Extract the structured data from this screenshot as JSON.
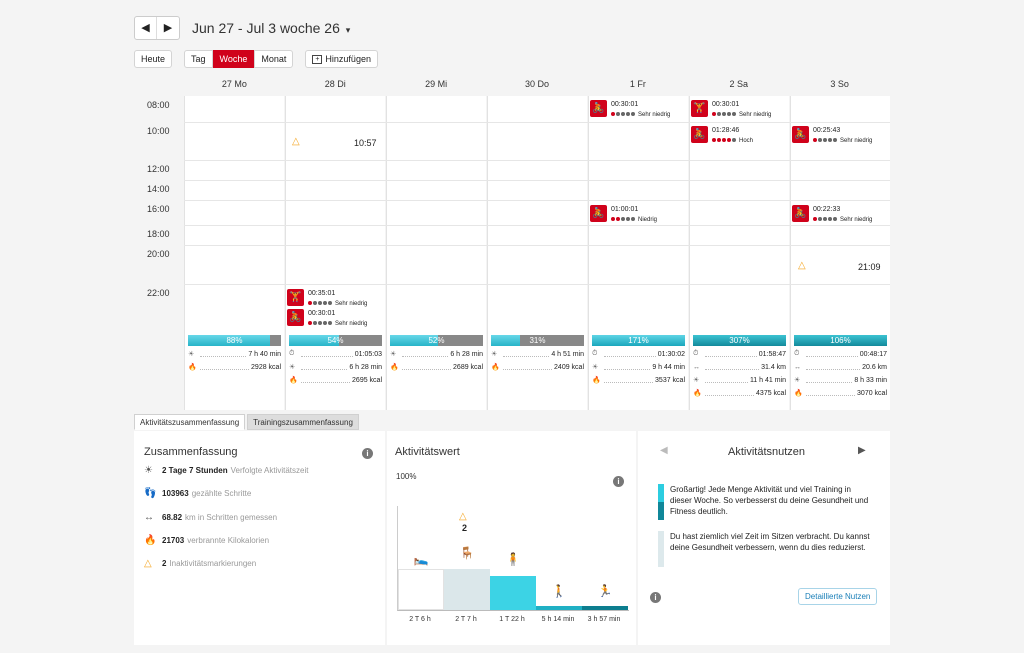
{
  "nav": {
    "prev": "◀",
    "next": "▶",
    "date_range": "Jun 27 - Jul 3 woche 26",
    "caret": "▾"
  },
  "toolbar": {
    "today": "Heute",
    "day": "Tag",
    "week": "Woche",
    "month": "Monat",
    "add": "Hinzufügen"
  },
  "days": [
    "27 Mo",
    "28 Di",
    "29 Mi",
    "30 Do",
    "1 Fr",
    "2 Sa",
    "3 So"
  ],
  "times": [
    "08:00",
    "10:00",
    "12:00",
    "14:00",
    "16:00",
    "18:00",
    "20:00",
    "22:00"
  ],
  "events": [
    {
      "time": "00:30:01",
      "intensity": "Sehr niedrig",
      "red": 1
    },
    {
      "time": "00:30:01",
      "intensity": "Sehr niedrig",
      "red": 1
    },
    {
      "time": "01:28:46",
      "intensity": "Hoch",
      "red": 4
    },
    {
      "time": "00:25:43",
      "intensity": "Sehr niedrig",
      "red": 1
    },
    {
      "time": "01:00:01",
      "intensity": "Niedrig",
      "red": 2
    },
    {
      "time": "00:22:33",
      "intensity": "Sehr niedrig",
      "red": 1
    },
    {
      "time": "00:35:01",
      "intensity": "Sehr niedrig",
      "red": 1
    },
    {
      "time": "00:30:01",
      "intensity": "Sehr niedrig",
      "red": 1
    }
  ],
  "inactivity": [
    {
      "time": "10:57"
    },
    {
      "time": "21:09"
    }
  ],
  "summaries": [
    {
      "pct": "88%",
      "fill": 0.88,
      "r1": "7 h 40 min",
      "r2": "2928 kcal"
    },
    {
      "pct": "54%",
      "fill": 0.54,
      "r1": "01:05:03",
      "r2": "6 h 28 min",
      "r3": "2695 kcal"
    },
    {
      "pct": "52%",
      "fill": 0.52,
      "r1": "6 h 28 min",
      "r2": "2689 kcal"
    },
    {
      "pct": "31%",
      "fill": 0.31,
      "r1": "4 h 51 min",
      "r2": "2409 kcal"
    },
    {
      "pct": "171%",
      "fill": 1.0,
      "r1": "01:30:02",
      "r2": "9 h 44 min",
      "r3": "3537 kcal"
    },
    {
      "pct": "307%",
      "fill": 1.0,
      "r1": "01:58:47",
      "r2": "31.4 km",
      "r3": "11 h 41 min",
      "r4": "4375 kcal"
    },
    {
      "pct": "106%",
      "fill": 1.0,
      "r1": "00:48:17",
      "r2": "20.6 km",
      "r3": "8 h 33 min",
      "r4": "3070 kcal"
    }
  ],
  "tabs": [
    "Aktivitätszusammenfassung",
    "Trainingszusammenfassung"
  ],
  "summary": {
    "title": "Zusammenfassung",
    "rows": [
      {
        "bold": "2 Tage 7 Stunden",
        "text": "Verfolgte Aktivitätszeit"
      },
      {
        "bold": "103963",
        "text": "gezählte Schritte"
      },
      {
        "bold": "68.82",
        "text": "km in Schritten gemessen"
      },
      {
        "bold": "21703",
        "text": "verbrannte Kilokalorien"
      },
      {
        "bold": "2",
        "text": "Inaktivitätsmarkierungen"
      }
    ]
  },
  "activity_value": {
    "title": "Aktivitätswert",
    "top_label": "100%",
    "marker_count": "2",
    "labels": [
      "2 T 6 h",
      "2 T 7 h",
      "1 T 22 h",
      "5 h 14 min",
      "3 h 57 min"
    ],
    "levels": [
      0.39,
      0.39,
      0.32,
      0.04,
      0.04
    ]
  },
  "benefit": {
    "title": "Aktivitätsnutzen",
    "msg1": "Großartig! Jede Menge Aktivität und viel Training in dieser Woche. So verbesserst du deine Gesundheit und Fitness deutlich.",
    "msg2": "Du hast ziemlich viel Zeit im Sitzen verbracht. Du kannst deine Gesundheit verbessern, wenn du dies reduzierst.",
    "button": "Detaillierte Nutzen"
  },
  "colors": {
    "brand": "#d0021b",
    "accent": "#28b4c8",
    "warning": "#f5a623"
  }
}
